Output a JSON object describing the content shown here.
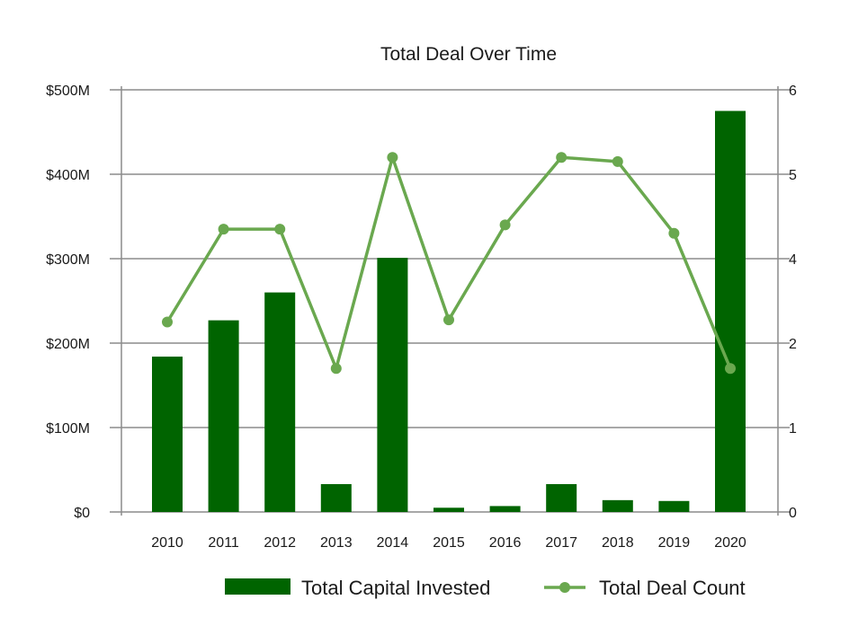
{
  "chart_data": {
    "type": "bar",
    "title": "Total Deal Over Time",
    "categories": [
      "2010",
      "2011",
      "2012",
      "2013",
      "2014",
      "2015",
      "2016",
      "2017",
      "2018",
      "2019",
      "2020"
    ],
    "series": [
      {
        "name": "Total Capital Invested",
        "type": "bar",
        "axis": "left",
        "color": "#006400",
        "values": [
          184,
          227,
          260,
          33,
          301,
          5,
          7,
          33,
          14,
          13,
          475
        ]
      },
      {
        "name": "Total Deal Count",
        "type": "line",
        "axis": "right",
        "color": "#6aa84f",
        "values": [
          2.5,
          4.35,
          4.35,
          1.7,
          5.2,
          2.55,
          4.4,
          5.2,
          5.15,
          4.3,
          1.7
        ]
      }
    ],
    "y_left": {
      "ticks": [
        0,
        100,
        200,
        300,
        400,
        500
      ],
      "tick_labels": [
        "$0",
        "$100M",
        "$200M",
        "$300M",
        "$400M",
        "$500M"
      ],
      "unit": "$M"
    },
    "y_right": {
      "tick_labels": [
        "0",
        "1",
        "2",
        "4",
        "5",
        "6"
      ]
    },
    "grid": true,
    "legend_position": "bottom"
  }
}
